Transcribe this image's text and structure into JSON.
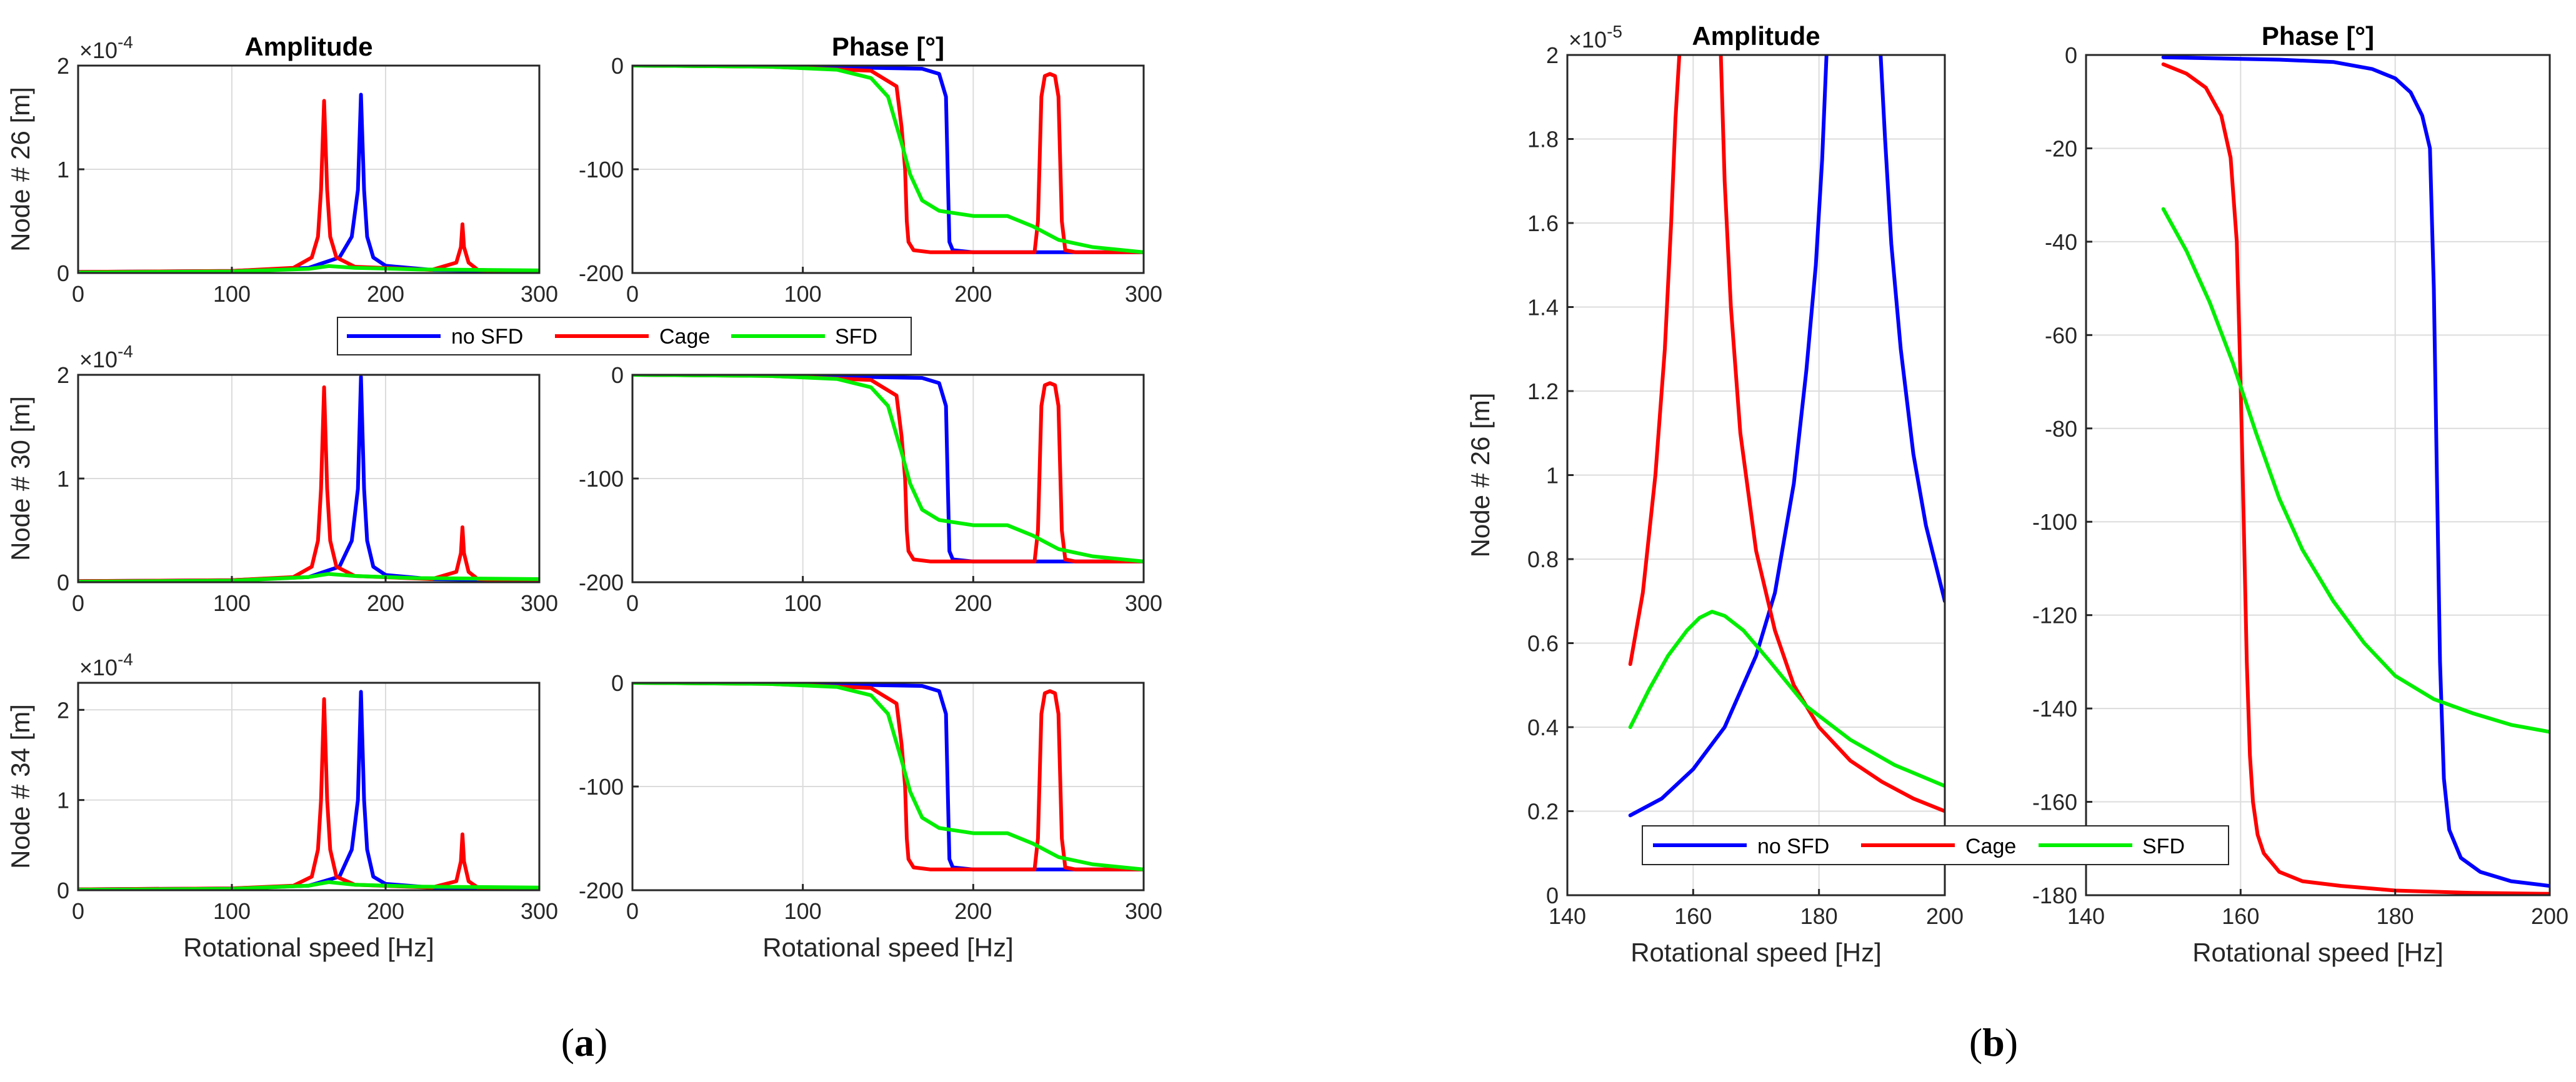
{
  "chart_data": [
    {
      "type": "line",
      "panel": "a",
      "title": "Amplitude",
      "ylabel": "Node # 26 [m]",
      "xlabel": "",
      "xlim": [
        0,
        300
      ],
      "ylim": [
        0,
        2
      ],
      "y_exponent": "×10",
      "y_exponent_power": "-4",
      "xticks": [
        "0",
        "100",
        "200",
        "300"
      ],
      "yticks": [
        "0",
        "1",
        "2"
      ],
      "series": [
        {
          "name": "no SFD",
          "color": "#0000ff",
          "x": [
            0,
            100,
            150,
            170,
            178,
            182,
            184,
            186,
            188,
            192,
            200,
            230,
            300
          ],
          "y": [
            0.01,
            0.02,
            0.05,
            0.15,
            0.35,
            0.8,
            1.72,
            0.8,
            0.35,
            0.15,
            0.07,
            0.03,
            0.02
          ]
        },
        {
          "name": "Cage",
          "color": "#ff0000",
          "x": [
            0,
            100,
            140,
            152,
            156,
            158,
            160,
            162,
            164,
            168,
            180,
            230,
            246,
            249,
            250,
            251,
            254,
            260,
            300
          ],
          "y": [
            0.01,
            0.02,
            0.05,
            0.15,
            0.35,
            0.8,
            1.66,
            0.8,
            0.35,
            0.15,
            0.06,
            0.03,
            0.1,
            0.25,
            0.47,
            0.25,
            0.1,
            0.03,
            0.01
          ]
        },
        {
          "name": "SFD",
          "color": "#00ee00",
          "x": [
            0,
            100,
            150,
            163,
            180,
            220,
            300
          ],
          "y": [
            0.005,
            0.015,
            0.04,
            0.067,
            0.05,
            0.035,
            0.025
          ]
        }
      ]
    },
    {
      "type": "line",
      "panel": "a",
      "title": "Phase [°]",
      "ylabel": "",
      "xlabel": "",
      "xlim": [
        0,
        300
      ],
      "ylim": [
        -200,
        0
      ],
      "xticks": [
        "0",
        "100",
        "200",
        "300"
      ],
      "yticks": [
        "0",
        "-100",
        "-200"
      ],
      "series": [
        {
          "name": "no SFD",
          "color": "#0000ff",
          "x": [
            0,
            100,
            170,
            180,
            184,
            185,
            186,
            188,
            200,
            300
          ],
          "y": [
            0,
            -1,
            -3,
            -8,
            -30,
            -100,
            -170,
            -178,
            -180,
            -180
          ]
        },
        {
          "name": "Cage",
          "color": "#ff0000",
          "x": [
            0,
            80,
            140,
            155,
            158,
            160,
            161,
            162,
            165,
            175,
            236,
            238,
            240,
            242,
            245,
            248,
            250,
            252,
            254,
            260,
            300
          ],
          "y": [
            0,
            -1,
            -5,
            -20,
            -60,
            -100,
            -150,
            -170,
            -178,
            -180,
            -180,
            -150,
            -30,
            -10,
            -8,
            -10,
            -30,
            -150,
            -178,
            -180,
            -180
          ]
        },
        {
          "name": "SFD",
          "color": "#00ee00",
          "x": [
            0,
            80,
            120,
            140,
            150,
            158,
            163,
            170,
            180,
            200,
            220,
            235,
            250,
            270,
            300
          ],
          "y": [
            0,
            -1,
            -4,
            -12,
            -30,
            -75,
            -105,
            -130,
            -140,
            -145,
            -145,
            -155,
            -168,
            -175,
            -180
          ]
        }
      ]
    },
    {
      "type": "line",
      "panel": "a",
      "title": "",
      "ylabel": "Node # 30 [m]",
      "xlabel": "",
      "xlim": [
        0,
        300
      ],
      "ylim": [
        0,
        2
      ],
      "y_exponent": "×10",
      "y_exponent_power": "-4",
      "xticks": [
        "0",
        "100",
        "200",
        "300"
      ],
      "yticks": [
        "0",
        "1",
        "2"
      ],
      "series": [
        {
          "name": "no SFD",
          "color": "#0000ff",
          "x": [
            0,
            100,
            150,
            170,
            178,
            182,
            184,
            186,
            188,
            192,
            200,
            230,
            300
          ],
          "y": [
            0.01,
            0.02,
            0.05,
            0.15,
            0.4,
            0.9,
            1.98,
            0.9,
            0.4,
            0.15,
            0.07,
            0.03,
            0.02
          ]
        },
        {
          "name": "Cage",
          "color": "#ff0000",
          "x": [
            0,
            100,
            140,
            152,
            156,
            158,
            160,
            162,
            164,
            168,
            180,
            230,
            246,
            249,
            250,
            251,
            254,
            260,
            300
          ],
          "y": [
            0.01,
            0.02,
            0.05,
            0.15,
            0.4,
            0.9,
            1.88,
            0.9,
            0.4,
            0.15,
            0.06,
            0.03,
            0.1,
            0.28,
            0.53,
            0.28,
            0.1,
            0.03,
            0.01
          ]
        },
        {
          "name": "SFD",
          "color": "#00ee00",
          "x": [
            0,
            100,
            150,
            163,
            180,
            220,
            300
          ],
          "y": [
            0.005,
            0.015,
            0.05,
            0.08,
            0.06,
            0.04,
            0.03
          ]
        }
      ]
    },
    {
      "type": "line",
      "panel": "a",
      "title": "",
      "ylabel": "",
      "xlabel": "",
      "xlim": [
        0,
        300
      ],
      "ylim": [
        -200,
        0
      ],
      "xticks": [
        "0",
        "100",
        "200",
        "300"
      ],
      "yticks": [
        "0",
        "-100",
        "-200"
      ],
      "series": [
        {
          "name": "no SFD",
          "color": "#0000ff",
          "x": [
            0,
            100,
            170,
            180,
            184,
            185,
            186,
            188,
            200,
            300
          ],
          "y": [
            0,
            -1,
            -3,
            -8,
            -30,
            -100,
            -170,
            -178,
            -180,
            -180
          ]
        },
        {
          "name": "Cage",
          "color": "#ff0000",
          "x": [
            0,
            80,
            140,
            155,
            158,
            160,
            161,
            162,
            165,
            175,
            236,
            238,
            240,
            242,
            245,
            248,
            250,
            252,
            254,
            260,
            300
          ],
          "y": [
            0,
            -1,
            -5,
            -20,
            -60,
            -100,
            -150,
            -170,
            -178,
            -180,
            -180,
            -150,
            -30,
            -10,
            -8,
            -10,
            -30,
            -150,
            -178,
            -180,
            -180
          ]
        },
        {
          "name": "SFD",
          "color": "#00ee00",
          "x": [
            0,
            80,
            120,
            140,
            150,
            158,
            163,
            170,
            180,
            200,
            220,
            235,
            250,
            270,
            300
          ],
          "y": [
            0,
            -1,
            -4,
            -12,
            -30,
            -75,
            -105,
            -130,
            -140,
            -145,
            -145,
            -155,
            -168,
            -175,
            -180
          ]
        }
      ]
    },
    {
      "type": "line",
      "panel": "a",
      "title": "",
      "ylabel": "Node # 34 [m]",
      "xlabel": "Rotational speed [Hz]",
      "xlim": [
        0,
        300
      ],
      "ylim": [
        0,
        2.3
      ],
      "y_exponent": "×10",
      "y_exponent_power": "-4",
      "xticks": [
        "0",
        "100",
        "200",
        "300"
      ],
      "yticks": [
        "0",
        "1",
        "2"
      ],
      "series": [
        {
          "name": "no SFD",
          "color": "#0000ff",
          "x": [
            0,
            100,
            150,
            170,
            178,
            182,
            184,
            186,
            188,
            192,
            200,
            230,
            300
          ],
          "y": [
            0.01,
            0.02,
            0.05,
            0.15,
            0.45,
            1.0,
            2.2,
            1.0,
            0.45,
            0.15,
            0.07,
            0.03,
            0.02
          ]
        },
        {
          "name": "Cage",
          "color": "#ff0000",
          "x": [
            0,
            100,
            140,
            152,
            156,
            158,
            160,
            162,
            164,
            168,
            180,
            230,
            246,
            249,
            250,
            251,
            254,
            260,
            300
          ],
          "y": [
            0.01,
            0.02,
            0.05,
            0.15,
            0.45,
            1.0,
            2.12,
            1.0,
            0.45,
            0.15,
            0.06,
            0.03,
            0.1,
            0.32,
            0.62,
            0.32,
            0.1,
            0.03,
            0.01
          ]
        },
        {
          "name": "SFD",
          "color": "#00ee00",
          "x": [
            0,
            100,
            150,
            163,
            180,
            220,
            300
          ],
          "y": [
            0.005,
            0.015,
            0.05,
            0.09,
            0.06,
            0.04,
            0.03
          ]
        }
      ]
    },
    {
      "type": "line",
      "panel": "a",
      "title": "",
      "ylabel": "",
      "xlabel": "Rotational speed [Hz]",
      "xlim": [
        0,
        300
      ],
      "ylim": [
        -200,
        0
      ],
      "xticks": [
        "0",
        "100",
        "200",
        "300"
      ],
      "yticks": [
        "0",
        "-100",
        "-200"
      ],
      "series": [
        {
          "name": "no SFD",
          "color": "#0000ff",
          "x": [
            0,
            100,
            170,
            180,
            184,
            185,
            186,
            188,
            200,
            300
          ],
          "y": [
            0,
            -1,
            -3,
            -8,
            -30,
            -100,
            -170,
            -178,
            -180,
            -180
          ]
        },
        {
          "name": "Cage",
          "color": "#ff0000",
          "x": [
            0,
            80,
            140,
            155,
            158,
            160,
            161,
            162,
            165,
            175,
            236,
            238,
            240,
            242,
            245,
            248,
            250,
            252,
            254,
            260,
            300
          ],
          "y": [
            0,
            -1,
            -5,
            -20,
            -60,
            -100,
            -150,
            -170,
            -178,
            -180,
            -180,
            -150,
            -30,
            -10,
            -8,
            -10,
            -30,
            -150,
            -178,
            -180,
            -180
          ]
        },
        {
          "name": "SFD",
          "color": "#00ee00",
          "x": [
            0,
            80,
            120,
            140,
            150,
            158,
            163,
            170,
            180,
            200,
            220,
            235,
            250,
            270,
            300
          ],
          "y": [
            0,
            -1,
            -4,
            -12,
            -30,
            -75,
            -105,
            -130,
            -140,
            -145,
            -145,
            -155,
            -168,
            -175,
            -180
          ]
        }
      ]
    },
    {
      "type": "line",
      "panel": "b",
      "title": "Amplitude",
      "ylabel": "Node # 26 [m]",
      "xlabel": "Rotational speed [Hz]",
      "xlim": [
        140,
        200
      ],
      "ylim": [
        0,
        2
      ],
      "y_exponent": "×10",
      "y_exponent_power": "-5",
      "xticks": [
        "140",
        "160",
        "180",
        "200"
      ],
      "yticks": [
        "0",
        "0.2",
        "0.4",
        "0.6",
        "0.8",
        "1",
        "1.2",
        "1.4",
        "1.6",
        "1.8",
        "2"
      ],
      "series": [
        {
          "name": "no SFD",
          "color": "#0000ff",
          "x": [
            150,
            155,
            160,
            165,
            170,
            173,
            176,
            178,
            179.5,
            180.5,
            181.2
          ],
          "y": [
            0.19,
            0.23,
            0.3,
            0.4,
            0.57,
            0.72,
            0.98,
            1.25,
            1.5,
            1.75,
            2.0
          ]
        },
        {
          "name": "no SFD",
          "color": "#0000ff",
          "x": [
            189.8,
            190.5,
            191.5,
            193,
            195,
            197,
            200
          ],
          "y": [
            2.0,
            1.8,
            1.55,
            1.3,
            1.05,
            0.88,
            0.7
          ]
        },
        {
          "name": "Cage",
          "color": "#ff0000",
          "x": [
            150,
            152,
            154,
            155.5,
            156.5,
            157.2,
            157.8
          ],
          "y": [
            0.55,
            0.72,
            1.0,
            1.3,
            1.6,
            1.85,
            2.0
          ]
        },
        {
          "name": "Cage",
          "color": "#ff0000",
          "x": [
            164.4,
            165,
            166,
            167.5,
            170,
            173,
            176,
            180,
            185,
            190,
            195,
            200
          ],
          "y": [
            2.0,
            1.7,
            1.4,
            1.1,
            0.82,
            0.63,
            0.5,
            0.4,
            0.32,
            0.27,
            0.23,
            0.2
          ]
        },
        {
          "name": "SFD",
          "color": "#00ee00",
          "x": [
            150,
            153,
            156,
            159,
            161,
            163,
            165,
            168,
            172,
            178,
            185,
            192,
            200
          ],
          "y": [
            0.4,
            0.49,
            0.57,
            0.63,
            0.66,
            0.675,
            0.665,
            0.63,
            0.56,
            0.45,
            0.37,
            0.31,
            0.26
          ]
        }
      ]
    },
    {
      "type": "line",
      "panel": "b",
      "title": "Phase [°]",
      "ylabel": "",
      "xlabel": "Rotational speed [Hz]",
      "xlim": [
        140,
        200
      ],
      "ylim": [
        -180,
        0
      ],
      "xticks": [
        "140",
        "160",
        "180",
        "200"
      ],
      "yticks": [
        "0",
        "-20",
        "-40",
        "-60",
        "-80",
        "-100",
        "-120",
        "-140",
        "-160",
        "-180"
      ],
      "series": [
        {
          "name": "no SFD",
          "color": "#0000ff",
          "x": [
            150,
            165,
            172,
            177,
            180,
            182,
            183.5,
            184.5,
            185,
            185.4,
            185.8,
            186.3,
            187,
            188.5,
            191,
            195,
            200
          ],
          "y": [
            -0.5,
            -1,
            -1.5,
            -3,
            -5,
            -8,
            -13,
            -20,
            -50,
            -90,
            -130,
            -155,
            -166,
            -172,
            -175,
            -177,
            -178
          ]
        },
        {
          "name": "Cage",
          "color": "#ff0000",
          "x": [
            150,
            153,
            155.5,
            157.5,
            158.7,
            159.5,
            160,
            160.4,
            160.8,
            161.2,
            161.6,
            162.2,
            163,
            165,
            168,
            173,
            180,
            190,
            200
          ],
          "y": [
            -2,
            -4,
            -7,
            -13,
            -22,
            -40,
            -70,
            -100,
            -130,
            -150,
            -160,
            -167,
            -171,
            -175,
            -177,
            -178,
            -179,
            -179.5,
            -179.7
          ]
        },
        {
          "name": "SFD",
          "color": "#00ee00",
          "x": [
            150,
            153,
            156,
            159,
            162,
            165,
            168,
            172,
            176,
            180,
            185,
            190,
            195,
            200
          ],
          "y": [
            -33,
            -42,
            -53,
            -66,
            -81,
            -95,
            -106,
            -117,
            -126,
            -133,
            -138,
            -141,
            -143.5,
            -145
          ]
        }
      ]
    }
  ],
  "legend": {
    "entries": [
      {
        "label": "no SFD",
        "color": "#0000ff"
      },
      {
        "label": "Cage",
        "color": "#ff0000"
      },
      {
        "label": "SFD",
        "color": "#00ee00"
      }
    ]
  },
  "captions": {
    "a_open": "(",
    "a_letter": "a",
    "a_close": ")",
    "b_open": "(",
    "b_letter": "b",
    "b_close": ")"
  }
}
